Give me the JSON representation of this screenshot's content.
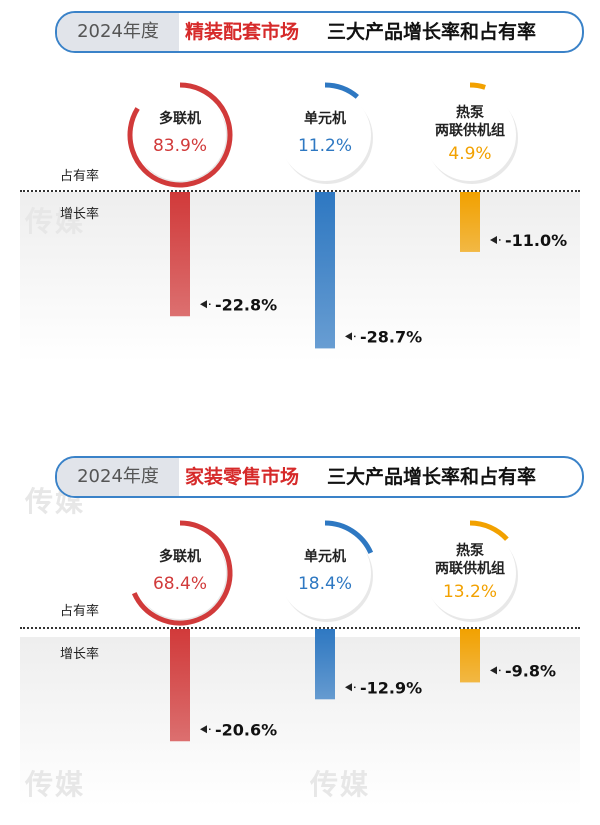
{
  "colors": {
    "red": "#d13a3a",
    "blue": "#2e78c2",
    "orange": "#f2a100",
    "title_border": "#3a82c8",
    "title_market": "#d62a2a"
  },
  "watermark": "传媒",
  "chart_data": [
    {
      "type": "bar",
      "title_year": "2024年度",
      "title_market": "精装配套市场",
      "title_rest": "三大产品增长率和占有率",
      "share_label": "占有率",
      "growth_label": "增长率",
      "categories": [
        "多联机",
        "单元机",
        "热泵两联供机组"
      ],
      "series": [
        {
          "name": "占有率",
          "values": [
            83.9,
            11.2,
            4.9
          ],
          "labels": [
            "83.9%",
            "11.2%",
            "4.9%"
          ]
        },
        {
          "name": "增长率",
          "values": [
            -22.8,
            -28.7,
            -11.0
          ],
          "labels": [
            "-22.8%",
            "-28.7%",
            "-11.0%"
          ]
        }
      ]
    },
    {
      "type": "bar",
      "title_year": "2024年度",
      "title_market": "家装零售市场",
      "title_rest": "三大产品增长率和占有率",
      "share_label": "占有率",
      "growth_label": "增长率",
      "categories": [
        "多联机",
        "单元机",
        "热泵两联供机组"
      ],
      "series": [
        {
          "name": "占有率",
          "values": [
            68.4,
            18.4,
            13.2
          ],
          "labels": [
            "68.4%",
            "18.4%",
            "13.2%"
          ]
        },
        {
          "name": "增长率",
          "values": [
            -20.6,
            -12.9,
            -9.8
          ],
          "labels": [
            "-20.6%",
            "-12.9%",
            "-9.8%"
          ]
        }
      ]
    }
  ]
}
